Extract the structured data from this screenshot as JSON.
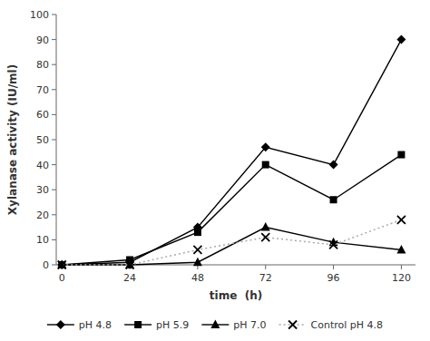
{
  "chart_data": {
    "type": "line",
    "x": [
      0,
      24,
      48,
      72,
      96,
      120
    ],
    "xlabel": "time  (h)",
    "ylabel": "Xylanase activity (IU/ml)",
    "xlim": [
      -2,
      125
    ],
    "ylim": [
      0,
      100
    ],
    "xticks": [
      0,
      24,
      48,
      72,
      96,
      120
    ],
    "yticks": [
      0,
      10,
      20,
      30,
      40,
      50,
      60,
      70,
      80,
      90,
      100
    ],
    "grid": false,
    "legend": "bottom",
    "series": [
      {
        "name": "pH 4.8",
        "color": "#000000",
        "marker": "diamond",
        "line_style": "solid",
        "values": [
          0,
          1,
          15,
          47,
          40,
          90
        ]
      },
      {
        "name": "pH 5.9",
        "color": "#000000",
        "marker": "square",
        "line_style": "solid",
        "values": [
          0,
          2,
          13,
          40,
          26,
          44
        ]
      },
      {
        "name": "pH 7.0",
        "color": "#000000",
        "marker": "triangle",
        "line_style": "solid",
        "values": [
          0,
          0,
          1,
          15,
          9,
          6
        ]
      },
      {
        "name": "Control pH 4.8",
        "color": "#aaaaaa",
        "marker": "x",
        "line_style": "dotted",
        "values": [
          0,
          0,
          6,
          11,
          8,
          18
        ]
      }
    ]
  }
}
